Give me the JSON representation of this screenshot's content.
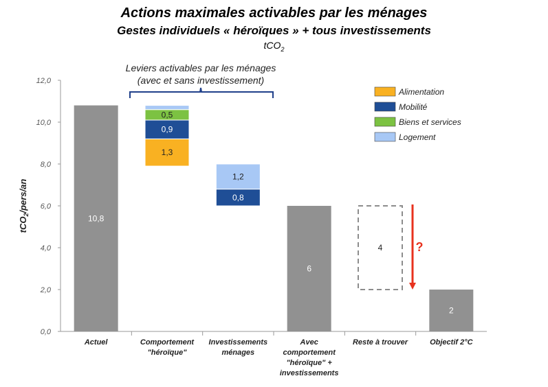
{
  "title": "Actions maximales activables par les ménages",
  "subtitle": "Gestes individuels « héroïques » + tous investissements",
  "unit_prefix": "tCO",
  "unit_sub": "2",
  "ylabel_main": "tCO",
  "ylabel_sub": "2",
  "ylabel_tail": "/pers/an",
  "bracket_label_1": "Leviers activables par les ménages",
  "bracket_label_2": "(avec et sans investissement)",
  "question_mark": "?",
  "colors": {
    "total": "#919191",
    "Alimentation": "#f9b122",
    "Mobilité": "#1f4e96",
    "Biens et services": "#7cc242",
    "Logement": "#a8c8f5",
    "arrow": "#e8321e"
  },
  "chart_data": {
    "type": "bar",
    "subtype": "waterfall",
    "ylim": [
      0,
      12
    ],
    "yticks": [
      "0,0",
      "2,0",
      "4,0",
      "6,0",
      "8,0",
      "10,0",
      "12,0"
    ],
    "grid": false,
    "legend_position": "top-right",
    "legend": [
      "Alimentation",
      "Mobilité",
      "Biens et services",
      "Logement"
    ],
    "categories": [
      {
        "label": [
          "Actuel"
        ],
        "kind": "total",
        "value": 10.8,
        "label_text": "10,8"
      },
      {
        "label": [
          "Comportement",
          "\"héroïque\""
        ],
        "kind": "decrease",
        "top": 10.8,
        "segments": [
          {
            "series": "Alimentation",
            "value": 1.3,
            "label_text": "1,3"
          },
          {
            "series": "Mobilité",
            "value": 0.9,
            "label_text": "0,9"
          },
          {
            "series": "Biens et services",
            "value": 0.5,
            "label_text": "0,5"
          },
          {
            "series": "Logement",
            "value": 0.2,
            "label_text": ""
          }
        ]
      },
      {
        "label": [
          "Investissements",
          "ménages"
        ],
        "kind": "decrease",
        "top": 8.0,
        "segments": [
          {
            "series": "Mobilité",
            "value": 0.8,
            "label_text": "0,8"
          },
          {
            "series": "Logement",
            "value": 1.2,
            "label_text": "1,2"
          }
        ]
      },
      {
        "label": [
          "Avec",
          "comportement",
          "\"héroïque\" +",
          "investissements"
        ],
        "kind": "total",
        "value": 6,
        "label_text": "6"
      },
      {
        "label": [
          "Reste à trouver"
        ],
        "kind": "gap",
        "bottom": 2,
        "value": 4,
        "label_text": "4"
      },
      {
        "label": [
          "Objectif 2°C"
        ],
        "kind": "total",
        "value": 2,
        "label_text": "2"
      }
    ]
  }
}
